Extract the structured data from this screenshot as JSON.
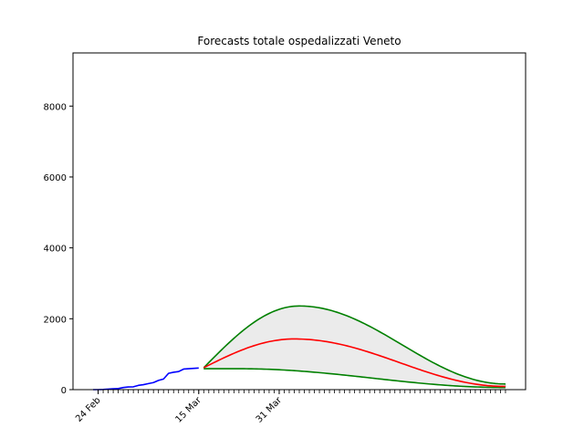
{
  "chart_data": {
    "type": "line",
    "title": "Forecasts totale ospedalizzati Veneto",
    "xlabel": "",
    "ylabel": "",
    "x_start_date": "2020-02-24",
    "xlim_days": [
      -5,
      85
    ],
    "ylim": [
      0,
      9500
    ],
    "yticks": [
      0,
      2000,
      4000,
      6000,
      8000
    ],
    "xtick_labels": [
      {
        "day": 0,
        "label": "24 Feb"
      },
      {
        "day": 20,
        "label": "15 Mar"
      },
      {
        "day": 36,
        "label": "31 Mar"
      }
    ],
    "minor_tick_days": {
      "from": 0,
      "to": 81,
      "step": 1
    },
    "observed": {
      "color": "#0000ff",
      "x": [
        -1,
        0,
        1,
        2,
        3,
        4,
        5,
        6,
        7,
        8,
        9,
        10,
        11,
        12,
        13,
        14,
        15,
        16,
        17,
        18,
        19,
        20
      ],
      "values": [
        0,
        0,
        5,
        15,
        25,
        30,
        60,
        75,
        80,
        120,
        140,
        170,
        200,
        260,
        300,
        460,
        490,
        510,
        580,
        590,
        600,
        610
      ]
    },
    "forecast_start_day": 21,
    "forecast_end_day": 81,
    "central": {
      "color": "#ff0000",
      "peak_day": 39,
      "peak_value": 1430,
      "start_value": 620,
      "end_value": 90
    },
    "upper": {
      "color": "#008000",
      "peak_day": 40,
      "peak_value": 2360,
      "start_value": 620,
      "end_value": 160
    },
    "lower": {
      "color": "#008000",
      "peak_day": 28,
      "peak_value": 590,
      "start_value": 590,
      "end_value": 60
    },
    "band_fill": "#ebebeb"
  }
}
